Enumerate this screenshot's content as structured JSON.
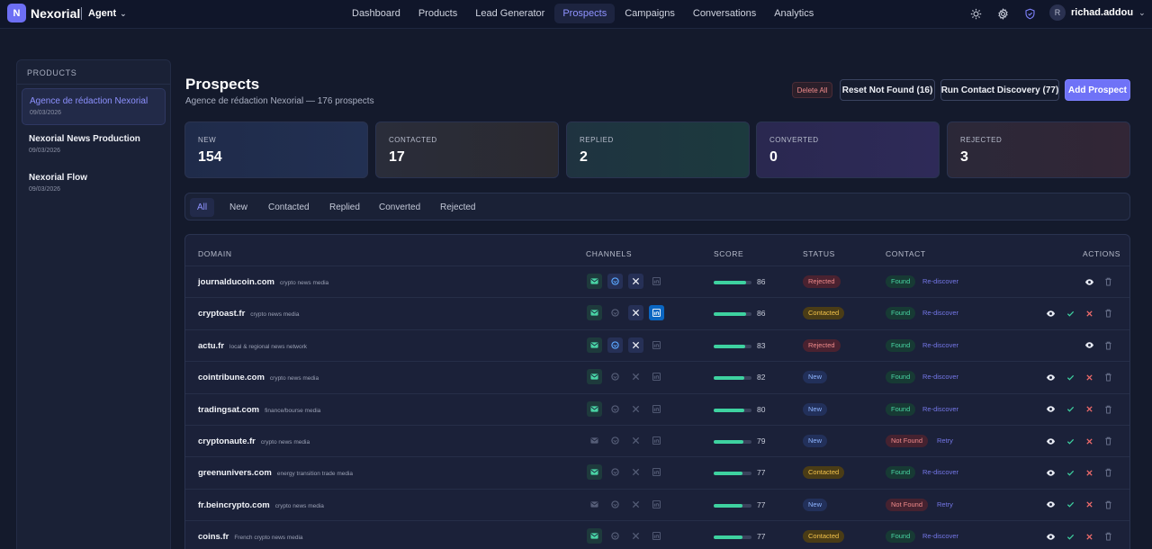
{
  "app": {
    "brand_initial": "N",
    "brand": "Nexorial",
    "agent_label": "Agent",
    "username": "richad.addou",
    "user_initial": "R"
  },
  "nav": [
    {
      "label": "Dashboard",
      "active": false
    },
    {
      "label": "Products",
      "active": false
    },
    {
      "label": "Lead Generator",
      "active": false
    },
    {
      "label": "Prospects",
      "active": true
    },
    {
      "label": "Campaigns",
      "active": false
    },
    {
      "label": "Conversations",
      "active": false
    },
    {
      "label": "Analytics",
      "active": false
    }
  ],
  "top_icons": [
    "sun-icon",
    "gear-icon",
    "shield-icon"
  ],
  "sidebar": {
    "title": "PRODUCTS",
    "items": [
      {
        "name": "Agence de rédaction Nexorial",
        "date": "09/03/2026",
        "active": true
      },
      {
        "name": "Nexorial News Production",
        "date": "09/03/2026",
        "active": false
      },
      {
        "name": "Nexorial Flow",
        "date": "09/03/2026",
        "active": false
      }
    ]
  },
  "page": {
    "title": "Prospects",
    "subtitle": "Agence de rédaction Nexorial — 176 prospects",
    "delete_all": "Delete All",
    "reset_not_found": "Reset Not Found (16)",
    "run_discovery": "Run Contact Discovery (77)",
    "add_prospect": "Add Prospect"
  },
  "stats": [
    {
      "label": "NEW",
      "value": "154"
    },
    {
      "label": "CONTACTED",
      "value": "17"
    },
    {
      "label": "REPLIED",
      "value": "2"
    },
    {
      "label": "CONVERTED",
      "value": "0"
    },
    {
      "label": "REJECTED",
      "value": "3"
    }
  ],
  "tabs": [
    {
      "label": "All",
      "active": true
    },
    {
      "label": "New",
      "active": false
    },
    {
      "label": "Contacted",
      "active": false
    },
    {
      "label": "Replied",
      "active": false
    },
    {
      "label": "Converted",
      "active": false
    },
    {
      "label": "Rejected",
      "active": false
    }
  ],
  "table": {
    "headers": {
      "domain": "DOMAIN",
      "channels": "CHANNELS",
      "score": "SCORE",
      "status": "STATUS",
      "contact": "CONTACT",
      "actions": "ACTIONS"
    },
    "rows": [
      {
        "domain": "journalducoin.com",
        "category": "crypto news media",
        "channels": {
          "email": true,
          "bluesky": true,
          "x": true,
          "linkedin": false
        },
        "score": 86,
        "status": "Rejected",
        "contact": "Found",
        "contact_action": "Re-discover",
        "actions": [
          "view",
          "delete"
        ]
      },
      {
        "domain": "cryptoast.fr",
        "category": "crypto news media",
        "channels": {
          "email": true,
          "bluesky": false,
          "x": true,
          "linkedin": true
        },
        "score": 86,
        "status": "Contacted",
        "contact": "Found",
        "contact_action": "Re-discover",
        "actions": [
          "view",
          "accept",
          "reject",
          "delete"
        ]
      },
      {
        "domain": "actu.fr",
        "category": "local & regional news network",
        "channels": {
          "email": true,
          "bluesky": true,
          "x": true,
          "linkedin": false
        },
        "score": 83,
        "status": "Rejected",
        "contact": "Found",
        "contact_action": "Re-discover",
        "actions": [
          "view",
          "delete"
        ]
      },
      {
        "domain": "cointribune.com",
        "category": "crypto news media",
        "channels": {
          "email": true,
          "bluesky": false,
          "x": false,
          "linkedin": false
        },
        "score": 82,
        "status": "New",
        "contact": "Found",
        "contact_action": "Re-discover",
        "actions": [
          "view",
          "accept",
          "reject",
          "delete"
        ]
      },
      {
        "domain": "tradingsat.com",
        "category": "finance/bourse media",
        "channels": {
          "email": true,
          "bluesky": false,
          "x": false,
          "linkedin": false
        },
        "score": 80,
        "status": "New",
        "contact": "Found",
        "contact_action": "Re-discover",
        "actions": [
          "view",
          "accept",
          "reject",
          "delete"
        ]
      },
      {
        "domain": "cryptonaute.fr",
        "category": "crypto news media",
        "channels": {
          "email": false,
          "bluesky": false,
          "x": false,
          "linkedin": false
        },
        "score": 79,
        "status": "New",
        "contact": "Not Found",
        "contact_action": "Retry",
        "actions": [
          "view",
          "accept",
          "reject",
          "delete"
        ]
      },
      {
        "domain": "greenunivers.com",
        "category": "energy transition trade media",
        "channels": {
          "email": true,
          "bluesky": false,
          "x": false,
          "linkedin": false
        },
        "score": 77,
        "status": "Contacted",
        "contact": "Found",
        "contact_action": "Re-discover",
        "actions": [
          "view",
          "accept",
          "reject",
          "delete"
        ]
      },
      {
        "domain": "fr.beincrypto.com",
        "category": "crypto news media",
        "channels": {
          "email": false,
          "bluesky": false,
          "x": false,
          "linkedin": false
        },
        "score": 77,
        "status": "New",
        "contact": "Not Found",
        "contact_action": "Retry",
        "actions": [
          "view",
          "accept",
          "reject",
          "delete"
        ]
      },
      {
        "domain": "coins.fr",
        "category": "French crypto news media",
        "channels": {
          "email": true,
          "bluesky": false,
          "x": false,
          "linkedin": false
        },
        "score": 77,
        "status": "Contacted",
        "contact": "Found",
        "contact_action": "Re-discover",
        "actions": [
          "view",
          "accept",
          "reject",
          "delete"
        ]
      }
    ]
  },
  "colors": {
    "accent": "#6f72f7",
    "status_rejected_bg": "#4a2230",
    "status_rejected_fg": "#f08a8a",
    "status_contacted_bg": "#4a3c16",
    "status_contacted_fg": "#f4c34a",
    "status_new_bg": "#22305a",
    "status_new_fg": "#8db4ff",
    "contact_found_bg": "#173a34",
    "contact_found_fg": "#48d5a2",
    "contact_notfound_bg": "#452230",
    "contact_notfound_fg": "#f08a8a"
  }
}
